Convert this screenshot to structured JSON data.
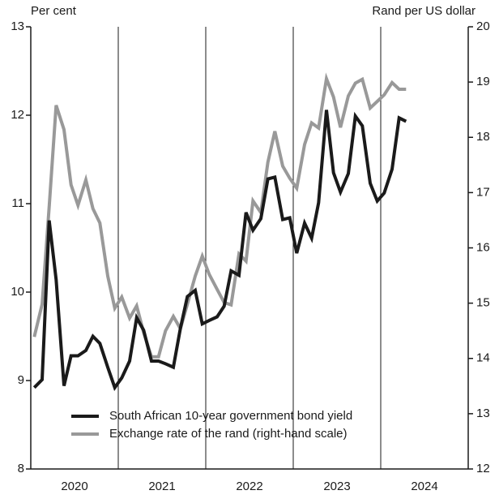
{
  "chart_data": {
    "type": "line",
    "y_label": "Per cent",
    "y2_label": "Rand per US dollar",
    "x": [
      2020.04,
      2020.13,
      2020.21,
      2020.29,
      2020.38,
      2020.46,
      2020.54,
      2020.63,
      2020.71,
      2020.79,
      2020.88,
      2020.96,
      2021.04,
      2021.13,
      2021.21,
      2021.29,
      2021.38,
      2021.46,
      2021.54,
      2021.63,
      2021.71,
      2021.79,
      2021.88,
      2021.96,
      2022.04,
      2022.13,
      2022.21,
      2022.29,
      2022.38,
      2022.46,
      2022.54,
      2022.63,
      2022.71,
      2022.79,
      2022.88,
      2022.96,
      2023.04,
      2023.13,
      2023.21,
      2023.29,
      2023.38,
      2023.46,
      2023.54,
      2023.63,
      2023.71,
      2023.79,
      2023.88,
      2023.96,
      2024.04,
      2024.13,
      2024.21,
      2024.29
    ],
    "xlim": [
      2020,
      2025
    ],
    "xticks": [
      {
        "value": 2020.5,
        "label": "2020"
      },
      {
        "value": 2021.5,
        "label": "2021"
      },
      {
        "value": 2022.5,
        "label": "2022"
      },
      {
        "value": 2023.5,
        "label": "2023"
      },
      {
        "value": 2024.5,
        "label": "2024"
      }
    ],
    "ylim": [
      8,
      13
    ],
    "yticks": [
      8,
      9,
      10,
      11,
      12,
      13
    ],
    "y2lim": [
      12,
      20
    ],
    "y2ticks": [
      12,
      13,
      14,
      15,
      16,
      17,
      18,
      19,
      20
    ],
    "series": [
      {
        "name": "South African 10-year government bond yield",
        "color": "#1a1a1a",
        "values": [
          8.92,
          9.01,
          10.81,
          10.14,
          8.94,
          9.28,
          9.28,
          9.34,
          9.5,
          9.42,
          9.15,
          8.92,
          9.03,
          9.22,
          9.71,
          9.57,
          9.22,
          9.22,
          9.19,
          9.15,
          9.59,
          9.95,
          10.02,
          9.64,
          9.68,
          9.72,
          9.84,
          10.24,
          10.19,
          10.9,
          10.7,
          10.83,
          11.28,
          11.3,
          10.82,
          10.84,
          10.44,
          10.78,
          10.61,
          11.01,
          12.06,
          11.35,
          11.13,
          11.34,
          11.99,
          11.88,
          11.23,
          11.03,
          11.12,
          11.39,
          11.97,
          11.93
        ]
      },
      {
        "name": "Exchange rate of the rand (right-hand scale)",
        "color": "#999999",
        "axis": "y2",
        "values": [
          14.39,
          14.98,
          16.74,
          18.58,
          18.14,
          17.14,
          16.77,
          17.23,
          16.71,
          16.45,
          15.49,
          14.91,
          15.11,
          14.73,
          14.95,
          14.47,
          14.03,
          14.03,
          14.5,
          14.76,
          14.54,
          14.98,
          15.49,
          15.85,
          15.52,
          15.25,
          15.01,
          14.97,
          15.89,
          15.76,
          16.85,
          16.64,
          17.55,
          18.11,
          17.48,
          17.26,
          17.08,
          17.87,
          18.26,
          18.17,
          19.06,
          18.73,
          18.18,
          18.75,
          18.98,
          19.05,
          18.53,
          18.65,
          18.77,
          18.99,
          18.87,
          18.87
        ]
      }
    ]
  }
}
